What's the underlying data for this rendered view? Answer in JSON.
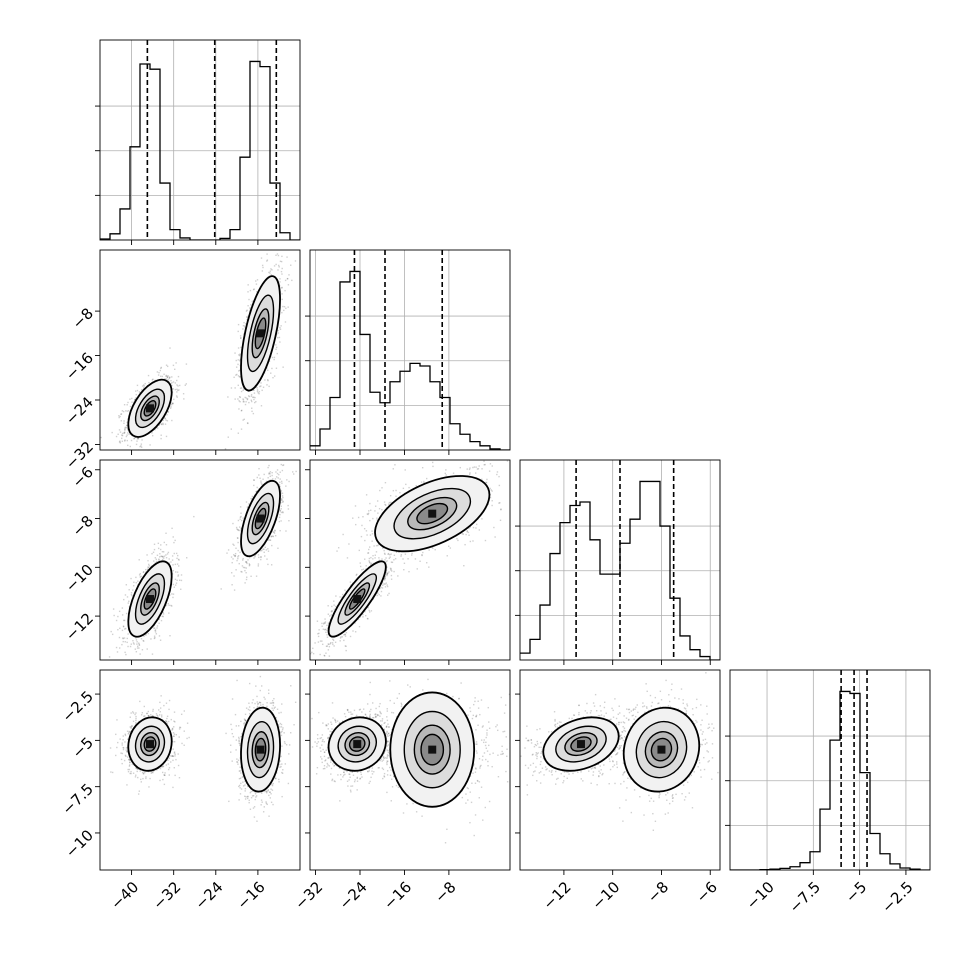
{
  "chart_data": {
    "type": "corner",
    "title": "",
    "grid": true,
    "params": [
      {
        "ticks": [
          -40,
          -32,
          -24,
          -16
        ],
        "range": [
          -46,
          -8
        ],
        "quantiles": [
          -37.0,
          -24.2,
          -12.5
        ]
      },
      {
        "ticks": [
          -32,
          -24,
          -16,
          -8
        ],
        "range": [
          -33,
          3
        ],
        "quantiles": [
          -25.0,
          -19.5,
          -9.2
        ]
      },
      {
        "ticks": [
          -12,
          -10,
          -8,
          -6
        ],
        "range": [
          -13.8,
          -5.6
        ],
        "quantiles": [
          -11.5,
          -9.7,
          -7.5
        ]
      },
      {
        "ticks": [
          -10.0,
          -7.5,
          -5.0,
          -2.5
        ],
        "range": [
          -12.0,
          -1.2
        ],
        "quantiles": [
          -6.0,
          -5.3,
          -4.6
        ]
      }
    ],
    "histograms": [
      {
        "bins": [
          -46,
          -44.1,
          -42.2,
          -40.3,
          -38.4,
          -36.5,
          -34.6,
          -32.7,
          -30.8,
          -28.9,
          -27,
          -25.1,
          -23.2,
          -21.3,
          -19.4,
          -17.5,
          -15.6,
          -13.7,
          -11.8,
          -9.9,
          -8
        ],
        "counts": [
          2,
          12,
          60,
          180,
          340,
          330,
          110,
          20,
          4,
          0,
          0,
          0,
          3,
          20,
          160,
          345,
          335,
          110,
          14,
          0
        ]
      },
      {
        "bins": [
          -33,
          -31.2,
          -29.4,
          -27.6,
          -25.8,
          -24,
          -22.2,
          -20.4,
          -18.6,
          -16.8,
          -15,
          -13.2,
          -11.4,
          -9.6,
          -7.8,
          -6,
          -4.2,
          -2.4,
          -0.6,
          1.2,
          3
        ],
        "counts": [
          8,
          40,
          100,
          320,
          340,
          220,
          110,
          90,
          130,
          150,
          165,
          160,
          130,
          100,
          50,
          30,
          16,
          8,
          2,
          0
        ]
      },
      {
        "bins": [
          -13.8,
          -13.39,
          -12.98,
          -12.57,
          -12.16,
          -11.75,
          -11.34,
          -10.93,
          -10.52,
          -10.11,
          -9.7,
          -9.29,
          -8.88,
          -8.47,
          -8.06,
          -7.65,
          -7.24,
          -6.83,
          -6.42,
          -6.01,
          -5.6
        ],
        "counts": [
          10,
          30,
          80,
          155,
          200,
          225,
          230,
          175,
          125,
          125,
          170,
          205,
          260,
          260,
          195,
          90,
          35,
          15,
          5,
          0
        ]
      },
      {
        "bins": [
          -12,
          -11.46,
          -10.92,
          -10.38,
          -9.84,
          -9.3,
          -8.76,
          -8.22,
          -7.68,
          -7.14,
          -6.6,
          -6.06,
          -5.52,
          -4.98,
          -4.44,
          -3.9,
          -3.36,
          -2.82,
          -2.28,
          -1.74,
          -1.2
        ],
        "counts": [
          0,
          0,
          0,
          1,
          2,
          4,
          8,
          18,
          45,
          150,
          320,
          440,
          435,
          240,
          90,
          40,
          15,
          5,
          2,
          0
        ]
      }
    ],
    "pairs": [
      {
        "row": 1,
        "col": 0,
        "modes": [
          {
            "mx": -36.5,
            "my": -25.5,
            "sx": 2.0,
            "sy": 2.5,
            "rho": 0.55,
            "w": 0.5
          },
          {
            "mx": -15.5,
            "my": -12.0,
            "sx": 1.8,
            "sy": 5.0,
            "rho": 0.6,
            "w": 0.5
          }
        ]
      },
      {
        "row": 2,
        "col": 0,
        "modes": [
          {
            "mx": -36.5,
            "my": -11.3,
            "sx": 2.0,
            "sy": 0.75,
            "rho": 0.6,
            "w": 0.5
          },
          {
            "mx": -15.5,
            "my": -8.0,
            "sx": 1.8,
            "sy": 0.75,
            "rho": 0.6,
            "w": 0.5
          }
        ]
      },
      {
        "row": 2,
        "col": 1,
        "modes": [
          {
            "mx": -24.5,
            "my": -11.3,
            "sx": 2.5,
            "sy": 0.75,
            "rho": 0.85,
            "w": 0.5
          },
          {
            "mx": -11.0,
            "my": -7.8,
            "sx": 5.0,
            "sy": 0.75,
            "rho": 0.5,
            "w": 0.5
          }
        ]
      },
      {
        "row": 3,
        "col": 0,
        "modes": [
          {
            "mx": -36.5,
            "my": -5.2,
            "sx": 2.0,
            "sy": 0.7,
            "rho": 0.1,
            "w": 0.5
          },
          {
            "mx": -15.5,
            "my": -5.5,
            "sx": 1.8,
            "sy": 1.1,
            "rho": 0.1,
            "w": 0.5
          }
        ]
      },
      {
        "row": 3,
        "col": 1,
        "modes": [
          {
            "mx": -24.5,
            "my": -5.2,
            "sx": 2.5,
            "sy": 0.7,
            "rho": 0.1,
            "w": 0.5
          },
          {
            "mx": -11.0,
            "my": -5.5,
            "sx": 5.0,
            "sy": 1.1,
            "rho": 0.0,
            "w": 0.5
          }
        ]
      },
      {
        "row": 3,
        "col": 2,
        "modes": [
          {
            "mx": -11.3,
            "my": -5.2,
            "sx": 0.75,
            "sy": 0.7,
            "rho": 0.3,
            "w": 0.5
          },
          {
            "mx": -8.0,
            "my": -5.5,
            "sx": 0.75,
            "sy": 1.1,
            "rho": 0.1,
            "w": 0.5
          }
        ]
      }
    ]
  }
}
